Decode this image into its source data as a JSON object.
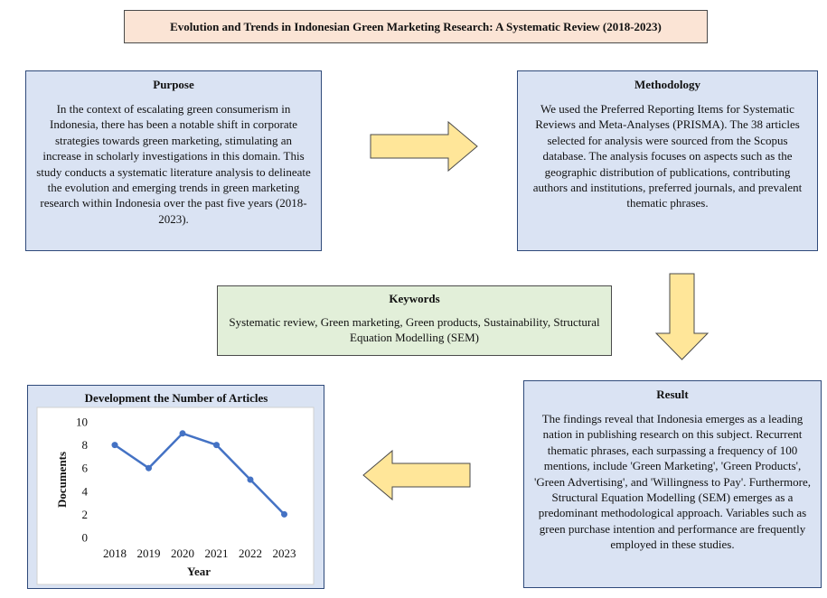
{
  "title": "Evolution and Trends in Indonesian Green Marketing Research: A Systematic Review (2018-2023)",
  "purpose": {
    "heading": "Purpose",
    "text": "In the context of escalating green consumerism in Indonesia, there has been a notable shift in corporate strategies towards green marketing, stimulating an increase in scholarly investigations in this domain. This study conducts a systematic literature analysis to delineate the evolution and emerging trends in green marketing research within Indonesia over the past five years (2018-2023)."
  },
  "methodology": {
    "heading": "Methodology",
    "text": "We used the Preferred Reporting Items for Systematic Reviews and Meta-Analyses (PRISMA). The 38 articles selected for analysis were sourced from the Scopus database. The analysis focuses on aspects such as the geographic distribution of publications, contributing authors and institutions, preferred journals, and prevalent thematic phrases."
  },
  "keywords": {
    "heading": "Keywords",
    "text": "Systematic review, Green marketing, Green products, Sustainability, Structural Equation Modelling (SEM)"
  },
  "result": {
    "heading": "Result",
    "text": "The findings reveal that Indonesia emerges as a leading nation in publishing research on this subject. Recurrent thematic phrases, each surpassing a frequency of 100 mentions, include 'Green Marketing', 'Green Products', 'Green Advertising', and 'Willingness to Pay'. Furthermore, Structural Equation Modelling (SEM) emerges as a predominant methodological approach. Variables such as green purchase intention and performance are frequently employed in these studies."
  },
  "colors": {
    "blue_box": "#dae3f3",
    "green_box": "#e2efd9",
    "title_box": "#fbe4d5",
    "arrow_fill": "#ffe699",
    "line": "#4472c4"
  },
  "chart_data": {
    "type": "line",
    "title": "Development the Number of Articles",
    "xlabel": "Year",
    "ylabel": "Documents",
    "categories": [
      "2018",
      "2019",
      "2020",
      "2021",
      "2022",
      "2023"
    ],
    "values": [
      8,
      6,
      9,
      8,
      5,
      2
    ],
    "ylim": [
      0,
      10
    ],
    "yticks": [
      0,
      2,
      4,
      6,
      8,
      10
    ],
    "grid": false,
    "markers": true
  }
}
